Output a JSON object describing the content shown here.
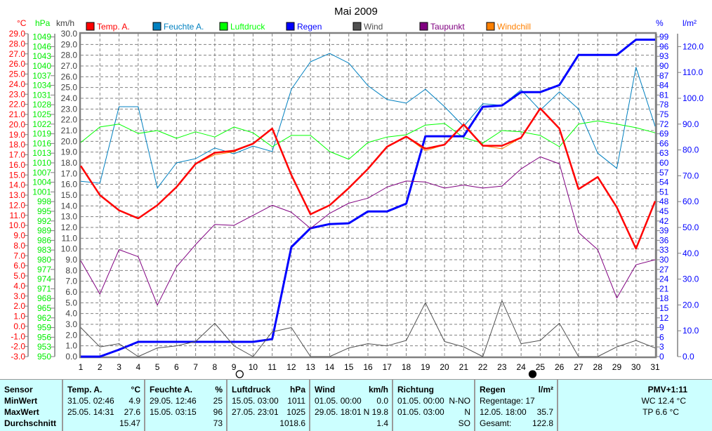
{
  "chart_data": {
    "type": "line",
    "title": "Mai 2009",
    "x": [
      1,
      2,
      3,
      4,
      5,
      6,
      7,
      8,
      9,
      10,
      11,
      12,
      13,
      14,
      15,
      16,
      17,
      18,
      19,
      20,
      21,
      22,
      23,
      24,
      25,
      26,
      27,
      28,
      29,
      30,
      31
    ],
    "axes": {
      "temp": {
        "unit": "°C",
        "range": [
          -3,
          29
        ],
        "step": 1,
        "color": "#ff0000"
      },
      "pressure": {
        "unit": "hPa",
        "range": [
          950,
          1049
        ],
        "step": 3,
        "color": "#00ee00"
      },
      "wind": {
        "unit": "km/h",
        "range": [
          0,
          30
        ],
        "step": 1,
        "color": "#404040"
      },
      "humidity": {
        "unit": "%",
        "range": [
          0,
          99
        ],
        "step": 3,
        "color": "#0000ff"
      },
      "rain": {
        "unit": "l/m²",
        "range": [
          0,
          120
        ],
        "step": 10,
        "color": "#0000ff"
      }
    },
    "grid": true,
    "legend_position": "top",
    "series": [
      {
        "name": "Temp. A.",
        "axis": "temp",
        "color": "#ff0000",
        "width": 2.5,
        "values": [
          15.9,
          13.0,
          11.5,
          10.7,
          12.0,
          13.8,
          16.1,
          17.2,
          17.4,
          18.1,
          19.6,
          15.0,
          11.1,
          12.0,
          13.7,
          15.6,
          17.8,
          18.8,
          17.6,
          18.0,
          20.0,
          17.9,
          17.9,
          18.7,
          21.6,
          19.6,
          13.6,
          14.8,
          11.8,
          7.7,
          12.4
        ]
      },
      {
        "name": "Feuchte A.",
        "axis": "humidity",
        "color": "#0080c0",
        "width": 1,
        "values": [
          54.3,
          53.7,
          77.4,
          77.4,
          52.2,
          60.0,
          61.3,
          64.6,
          62.8,
          65.2,
          63.5,
          82.8,
          91.3,
          93.9,
          90.9,
          83.9,
          79.6,
          78.5,
          82.8,
          77.4,
          71.3,
          78.3,
          77.8,
          82.6,
          76.3,
          82.0,
          76.7,
          63.0,
          58.3,
          89.6,
          71.3
        ]
      },
      {
        "name": "Luftdruck",
        "axis": "pressure",
        "color": "#00ff00",
        "width": 1,
        "values": [
          1016.3,
          1021.1,
          1022.0,
          1019.1,
          1020.0,
          1017.6,
          1019.6,
          1018.0,
          1021.1,
          1019.3,
          1015.0,
          1018.5,
          1018.5,
          1013.5,
          1011.1,
          1016.3,
          1018.0,
          1018.7,
          1021.7,
          1022.2,
          1017.8,
          1016.1,
          1020.0,
          1019.6,
          1018.5,
          1015.0,
          1022.0,
          1023.0,
          1022.0,
          1020.9,
          1019.3
        ]
      },
      {
        "name": "Regen",
        "axis": "rain",
        "color": "#0000ff",
        "width": 3,
        "values": [
          0,
          0,
          2.7,
          5.7,
          5.7,
          5.7,
          5.7,
          5.7,
          5.7,
          5.7,
          6.8,
          42.4,
          49.7,
          51.3,
          51.6,
          56.2,
          56.2,
          59.2,
          85.3,
          85.3,
          85.3,
          96.7,
          97.2,
          102.4,
          102.4,
          105.1,
          116.8,
          116.8,
          116.8,
          122.7,
          122.7
        ]
      },
      {
        "name": "Wind",
        "axis": "wind",
        "color": "#505050",
        "width": 1,
        "values": [
          2.7,
          0.9,
          1.2,
          0,
          0.8,
          1.0,
          1.4,
          3.1,
          1.0,
          0,
          2.3,
          2.7,
          0,
          0,
          0.8,
          1.2,
          1.0,
          1.5,
          5.0,
          1.4,
          0.9,
          0,
          5.2,
          1.2,
          1.5,
          3.1,
          0,
          0,
          0.9,
          1.5,
          0.8
        ]
      },
      {
        "name": "Taupunkt",
        "axis": "temp",
        "color": "#800080",
        "width": 1,
        "values": [
          6.5,
          3.2,
          7.6,
          6.9,
          2.1,
          5.9,
          8.1,
          10.1,
          10.0,
          11.0,
          12.0,
          11.3,
          9.7,
          11.2,
          12.2,
          12.7,
          13.8,
          14.4,
          14.3,
          13.7,
          14.0,
          13.7,
          13.9,
          15.6,
          16.8,
          16.1,
          9.3,
          7.6,
          2.8,
          6.1,
          6.6
        ]
      },
      {
        "name": "Windchill",
        "axis": "temp",
        "color": "#ff8000",
        "width": 1,
        "values": [
          15.9,
          13.0,
          11.5,
          10.7,
          12.0,
          13.8,
          16.1,
          17.0,
          17.3,
          18.1,
          19.6,
          15.0,
          11.1,
          12.0,
          13.7,
          15.6,
          17.8,
          18.8,
          17.4,
          18.0,
          20.0,
          17.9,
          17.6,
          18.7,
          21.6,
          19.6,
          13.6,
          14.8,
          11.8,
          7.7,
          12.4
        ]
      }
    ],
    "moon_phases": [
      {
        "type": "new",
        "day": 9.3
      },
      {
        "type": "full",
        "day": 24.6
      }
    ]
  },
  "table": {
    "sensor": {
      "h": "Sensor",
      "min": "MinWert",
      "max": "MaxWert",
      "avg": "Durchschnitt"
    },
    "temp": {
      "h": "Temp. A.",
      "u": "°C",
      "min_t": "31.05.  02:46",
      "min": "4.9",
      "max_t": "25.05.  14:31",
      "max": "27.6",
      "avg": "15.47"
    },
    "hum": {
      "h": "Feuchte A.",
      "u": "%",
      "min_t": "29.05.  12:46",
      "min": "25",
      "max_t": "15.05.  03:15",
      "max": "96",
      "avg": "73"
    },
    "press": {
      "h": "Luftdruck",
      "u": "hPa",
      "min_t": "15.05.  03:00",
      "min": "1011",
      "max_t": "27.05.  23:01",
      "max": "1025",
      "avg": "1018.6"
    },
    "wind": {
      "h": "Wind",
      "u": "km/h",
      "min_t": "01.05.  00:00",
      "min": "0.0",
      "max_t": "29.05.  18:01",
      "max": "N 19.8",
      "avg": "1.4"
    },
    "dir": {
      "h": "Richtung",
      "min_t": "01.05.  00:00",
      "min": "N-NO",
      "max_t": "01.05.  03:00",
      "max": "N",
      "avg": "SO"
    },
    "rain": {
      "h": "Regen",
      "u": "l/m²",
      "days": "Regentage: 17",
      "max_t": "12.05.  18:00",
      "max": "35.7",
      "total_l": "Gesamt:",
      "total": "122.8"
    },
    "pmv": {
      "h": "PMV+1:11",
      "wc": "WC 12.4 °C",
      "tp": "TP 6.6 °C"
    }
  }
}
